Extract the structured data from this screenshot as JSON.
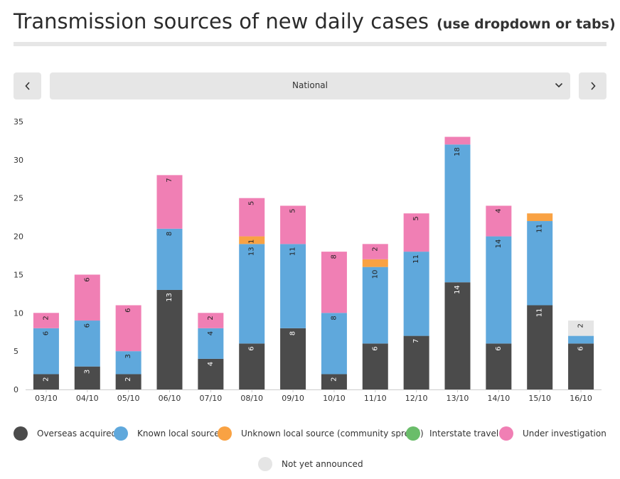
{
  "header": {
    "title_main": "Transmission sources of new daily cases",
    "title_sub": "(use dropdown or tabs)"
  },
  "controls": {
    "prev_icon": "chevron-left-icon",
    "next_icon": "chevron-right-icon",
    "dropdown_icon": "chevron-down-icon",
    "selected_region": "National"
  },
  "colors": {
    "overseas": "#4b4b4b",
    "known": "#5fa8dc",
    "unknown": "#f9a243",
    "interstate": "#6abd6a",
    "investigation": "#f07fb4",
    "not_announced": "#e5e5e5",
    "axis": "#cccccc",
    "tick_text": "#333333"
  },
  "chart_data": {
    "type": "bar",
    "stacked": true,
    "title": "Transmission sources of new daily cases",
    "xlabel": "",
    "ylabel": "",
    "ylim": [
      0,
      35
    ],
    "yticks": [
      0,
      5,
      10,
      15,
      20,
      25,
      30,
      35
    ],
    "grid": false,
    "legend_position": "bottom",
    "categories": [
      "03/10",
      "04/10",
      "05/10",
      "06/10",
      "07/10",
      "08/10",
      "09/10",
      "10/10",
      "11/10",
      "12/10",
      "13/10",
      "14/10",
      "15/10",
      "16/10"
    ],
    "series": [
      {
        "key": "overseas",
        "name": "Overseas acquired",
        "values": [
          2,
          3,
          2,
          13,
          4,
          6,
          8,
          2,
          6,
          7,
          14,
          6,
          11,
          6
        ]
      },
      {
        "key": "known",
        "name": "Known local source",
        "values": [
          6,
          6,
          3,
          8,
          4,
          13,
          11,
          8,
          10,
          11,
          18,
          14,
          11,
          1
        ]
      },
      {
        "key": "unknown",
        "name": "Unknown local source (community spread)",
        "values": [
          0,
          0,
          0,
          0,
          0,
          1,
          0,
          0,
          1,
          0,
          0,
          0,
          1,
          0
        ]
      },
      {
        "key": "interstate",
        "name": "Interstate travel",
        "values": [
          0,
          0,
          0,
          0,
          0,
          0,
          0,
          0,
          0,
          0,
          0,
          0,
          0,
          0
        ]
      },
      {
        "key": "investigation",
        "name": "Under investigation",
        "values": [
          2,
          6,
          6,
          7,
          2,
          5,
          5,
          8,
          2,
          5,
          1,
          4,
          0,
          0
        ]
      },
      {
        "key": "not_announced",
        "name": "Not yet announced",
        "values": [
          0,
          0,
          0,
          0,
          0,
          0,
          0,
          0,
          0,
          0,
          0,
          0,
          0,
          2
        ]
      }
    ],
    "data_labels": [
      {
        "overseas": "2",
        "known": "6",
        "unknown": "",
        "interstate": "",
        "investigation": "2",
        "not_announced": ""
      },
      {
        "overseas": "3",
        "known": "6",
        "unknown": "",
        "interstate": "",
        "investigation": "6",
        "not_announced": ""
      },
      {
        "overseas": "2",
        "known": "3",
        "unknown": "",
        "interstate": "",
        "investigation": "6",
        "not_announced": ""
      },
      {
        "overseas": "13",
        "known": "8",
        "unknown": "",
        "interstate": "",
        "investigation": "7",
        "not_announced": ""
      },
      {
        "overseas": "4",
        "known": "4",
        "unknown": "",
        "interstate": "",
        "investigation": "2",
        "not_announced": ""
      },
      {
        "overseas": "6",
        "known": "13",
        "unknown": "1",
        "interstate": "",
        "investigation": "5",
        "not_announced": ""
      },
      {
        "overseas": "8",
        "known": "11",
        "unknown": "",
        "interstate": "",
        "investigation": "5",
        "not_announced": ""
      },
      {
        "overseas": "2",
        "known": "8",
        "unknown": "",
        "interstate": "",
        "investigation": "8",
        "not_announced": ""
      },
      {
        "overseas": "6",
        "known": "10",
        "unknown": "",
        "interstate": "",
        "investigation": "2",
        "not_announced": ""
      },
      {
        "overseas": "7",
        "known": "11",
        "unknown": "",
        "interstate": "",
        "investigation": "5",
        "not_announced": ""
      },
      {
        "overseas": "14",
        "known": "18",
        "unknown": "",
        "interstate": "",
        "investigation": "",
        "not_announced": ""
      },
      {
        "overseas": "6",
        "known": "14",
        "unknown": "",
        "interstate": "",
        "investigation": "4",
        "not_announced": ""
      },
      {
        "overseas": "11",
        "known": "11",
        "unknown": "",
        "interstate": "",
        "investigation": "",
        "not_announced": ""
      },
      {
        "overseas": "6",
        "known": "",
        "unknown": "",
        "interstate": "",
        "investigation": "",
        "not_announced": "2"
      }
    ]
  }
}
